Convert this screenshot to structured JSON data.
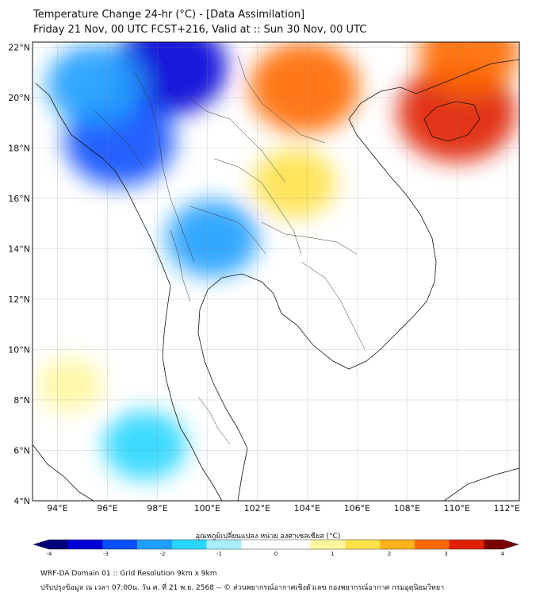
{
  "header": {
    "title_line1": "Temperature Change 24-hr (°C) - [Data Assimilation]",
    "title_line2": "Friday 21 Nov, 00 UTC FCST+216, Valid at :: Sun 30 Nov, 00 UTC"
  },
  "map": {
    "lat_labels": [
      "22°N",
      "20°N",
      "18°N",
      "16°N",
      "14°N",
      "12°N",
      "10°N",
      "8°N",
      "6°N",
      "4°N"
    ],
    "lon_labels": [
      "94°E",
      "96°E",
      "98°E",
      "100°E",
      "102°E",
      "104°E",
      "106°E",
      "108°E",
      "110°E",
      "112°E"
    ],
    "lon_range": [
      93,
      112.5
    ],
    "lat_range": [
      4,
      22.2
    ],
    "anomaly_regions": [
      {
        "name": "cold-core-myanmar-north",
        "lon": 98.5,
        "lat": 21.2,
        "value": -3.0
      },
      {
        "name": "cold-myanmar-central",
        "lon": 96.5,
        "lat": 18.3,
        "value": -2.8
      },
      {
        "name": "cold-myanmar-west",
        "lon": 95.5,
        "lat": 20.5,
        "value": -2.2
      },
      {
        "name": "cold-thailand-central",
        "lon": 100.2,
        "lat": 14.4,
        "value": -2.0
      },
      {
        "name": "cold-andaman-south",
        "lon": 97.5,
        "lat": 6.2,
        "value": -1.6
      },
      {
        "name": "warm-laos-north",
        "lon": 103.9,
        "lat": 20.4,
        "value": 2.8
      },
      {
        "name": "warm-hainan",
        "lon": 110.0,
        "lat": 19.4,
        "value": 3.2
      },
      {
        "name": "warm-guangxi",
        "lon": 110.5,
        "lat": 21.8,
        "value": 2.4
      },
      {
        "name": "warm-isan",
        "lon": 103.5,
        "lat": 16.6,
        "value": 1.6
      },
      {
        "name": "warm-bay-of-bengal",
        "lon": 94.5,
        "lat": 8.6,
        "value": 0.8
      }
    ]
  },
  "colorbar": {
    "title": "อุณหภูมิเปลี่ยนแปลง หน่วย องศาเซลเซียส (°C)",
    "ticks": [
      "-4",
      "-3",
      "-2",
      "-1",
      "0",
      "1",
      "2",
      "3",
      "4"
    ],
    "range": [
      -4,
      4
    ],
    "colors": [
      "#00007a",
      "#0000d8",
      "#0a4fff",
      "#1e9eff",
      "#29d6ff",
      "#a8eefc",
      "#ffffff",
      "#ffffff",
      "#fff6a0",
      "#ffe24a",
      "#ffb21a",
      "#ff6a00",
      "#e02000",
      "#7a0000"
    ]
  },
  "footer": {
    "line1": "WRF-DA Domain 01 :: Grid Resolution 9km x 9km",
    "line2": "ปรับปรุงข้อมูล ณ เวลา 07:00น. วัน ศ. ที่ 21 พ.ย. 2568 -- © ส่วนพยากรณ์อากาศเชิงตัวเลข กองพยากรณ์อากาศ กรมอุตุนิยมวิทยา"
  }
}
